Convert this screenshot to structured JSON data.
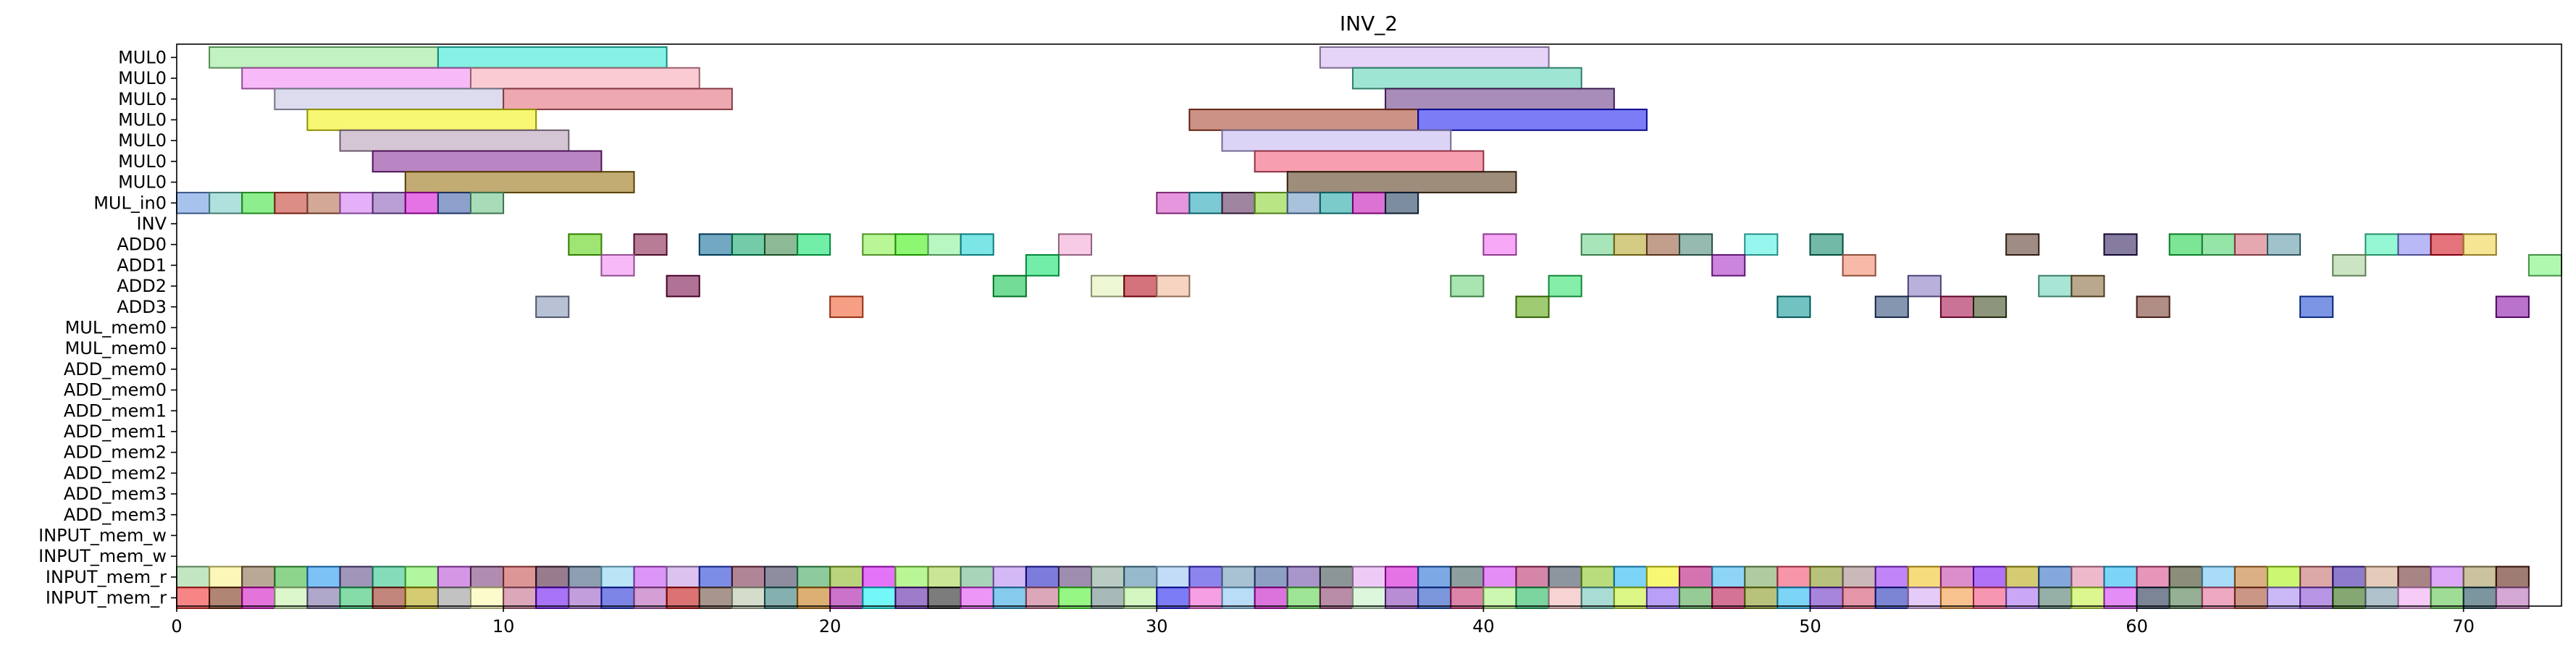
{
  "chart_data": {
    "type": "gantt",
    "title": "INV_2",
    "xlim": [
      0,
      73
    ],
    "xticks": [
      0,
      10,
      20,
      30,
      40,
      50,
      60,
      70
    ],
    "grid": false,
    "rows": [
      "MUL0",
      "MUL0",
      "MUL0",
      "MUL0",
      "MUL0",
      "MUL0",
      "MUL0",
      "MUL_in0",
      "INV",
      "ADD0",
      "ADD1",
      "ADD2",
      "ADD3",
      "MUL_mem0",
      "MUL_mem0",
      "ADD_mem0",
      "ADD_mem0",
      "ADD_mem1",
      "ADD_mem1",
      "ADD_mem2",
      "ADD_mem2",
      "ADD_mem3",
      "ADD_mem3",
      "INPUT_mem_w",
      "INPUT_mem_w",
      "INPUT_mem_r",
      "INPUT_mem_r"
    ],
    "tasks": [
      {
        "row": 0,
        "start": 1,
        "end": 8,
        "color": "#90e890"
      },
      {
        "row": 0,
        "start": 8,
        "end": 15,
        "color": "#20e8d0"
      },
      {
        "row": 0,
        "start": 35,
        "end": 42,
        "color": "#d0b0f0"
      },
      {
        "row": 1,
        "start": 2,
        "end": 9,
        "color": "#f080f0"
      },
      {
        "row": 1,
        "start": 9,
        "end": 16,
        "color": "#f8a0b0"
      },
      {
        "row": 1,
        "start": 36,
        "end": 43,
        "color": "#50d0b0"
      },
      {
        "row": 2,
        "start": 3,
        "end": 10,
        "color": "#c0c0e0"
      },
      {
        "row": 2,
        "start": 10,
        "end": 17,
        "color": "#e06070"
      },
      {
        "row": 2,
        "start": 37,
        "end": 44,
        "color": "#603080"
      },
      {
        "row": 3,
        "start": 4,
        "end": 11,
        "color": "#f0f000"
      },
      {
        "row": 3,
        "start": 31,
        "end": 38,
        "color": "#a03820"
      },
      {
        "row": 3,
        "start": 38,
        "end": 45,
        "color": "#1010f0"
      },
      {
        "row": 4,
        "start": 5,
        "end": 12,
        "color": "#b098b0"
      },
      {
        "row": 4,
        "start": 32,
        "end": 39,
        "color": "#c0b0f0"
      },
      {
        "row": 5,
        "start": 6,
        "end": 13,
        "color": "#802090"
      },
      {
        "row": 5,
        "start": 33,
        "end": 40,
        "color": "#f05070"
      },
      {
        "row": 6,
        "start": 7,
        "end": 14,
        "color": "#906800"
      },
      {
        "row": 6,
        "start": 34,
        "end": 41,
        "color": "#503010"
      },
      {
        "row": 7,
        "start": 0,
        "end": 1,
        "color": "#6090e0"
      },
      {
        "row": 7,
        "start": 1,
        "end": 2,
        "color": "#70c8c0"
      },
      {
        "row": 7,
        "start": 2,
        "end": 3,
        "color": "#30e030"
      },
      {
        "row": 7,
        "start": 3,
        "end": 4,
        "color": "#c03020"
      },
      {
        "row": 7,
        "start": 4,
        "end": 5,
        "color": "#b06040"
      },
      {
        "row": 7,
        "start": 5,
        "end": 6,
        "color": "#d070f0"
      },
      {
        "row": 7,
        "start": 6,
        "end": 7,
        "color": "#8050b0"
      },
      {
        "row": 7,
        "start": 7,
        "end": 8,
        "color": "#d000d0"
      },
      {
        "row": 7,
        "start": 8,
        "end": 9,
        "color": "#3050a0"
      },
      {
        "row": 7,
        "start": 9,
        "end": 10,
        "color": "#60c080"
      },
      {
        "row": 7,
        "start": 30,
        "end": 31,
        "color": "#d040c0"
      },
      {
        "row": 7,
        "start": 31,
        "end": 32,
        "color": "#10a0b0"
      },
      {
        "row": 7,
        "start": 32,
        "end": 33,
        "color": "#502050"
      },
      {
        "row": 7,
        "start": 33,
        "end": 34,
        "color": "#80d020"
      },
      {
        "row": 7,
        "start": 34,
        "end": 35,
        "color": "#6090c0"
      },
      {
        "row": 7,
        "start": 35,
        "end": 36,
        "color": "#10a0a0"
      },
      {
        "row": 7,
        "start": 36,
        "end": 37,
        "color": "#c000b0"
      },
      {
        "row": 7,
        "start": 37,
        "end": 38,
        "color": "#103050"
      },
      {
        "row": 9,
        "start": 12,
        "end": 13,
        "color": "#50d000"
      },
      {
        "row": 9,
        "start": 14,
        "end": 15,
        "color": "#801040"
      },
      {
        "row": 9,
        "start": 16,
        "end": 17,
        "color": "#006090"
      },
      {
        "row": 9,
        "start": 17,
        "end": 18,
        "color": "#00a060"
      },
      {
        "row": 9,
        "start": 18,
        "end": 19,
        "color": "#308040"
      },
      {
        "row": 9,
        "start": 19,
        "end": 20,
        "color": "#00e060"
      },
      {
        "row": 9,
        "start": 21,
        "end": 22,
        "color": "#80f040"
      },
      {
        "row": 9,
        "start": 22,
        "end": 23,
        "color": "#30f000"
      },
      {
        "row": 9,
        "start": 23,
        "end": 24,
        "color": "#80f090"
      },
      {
        "row": 9,
        "start": 24,
        "end": 25,
        "color": "#10d0d0"
      },
      {
        "row": 9,
        "start": 27,
        "end": 28,
        "color": "#f0a0d0"
      },
      {
        "row": 9,
        "start": 40,
        "end": 41,
        "color": "#f060f0"
      },
      {
        "row": 9,
        "start": 43,
        "end": 44,
        "color": "#60d080"
      },
      {
        "row": 9,
        "start": 44,
        "end": 45,
        "color": "#b0a020"
      },
      {
        "row": 9,
        "start": 45,
        "end": 46,
        "color": "#905030"
      },
      {
        "row": 9,
        "start": 46,
        "end": 47,
        "color": "#408070"
      },
      {
        "row": 9,
        "start": 48,
        "end": 49,
        "color": "#40f0e0"
      },
      {
        "row": 9,
        "start": 50,
        "end": 51,
        "color": "#008060"
      },
      {
        "row": 9,
        "start": 56,
        "end": 57,
        "color": "#503020"
      },
      {
        "row": 9,
        "start": 59,
        "end": 60,
        "color": "#201050"
      },
      {
        "row": 9,
        "start": 61,
        "end": 62,
        "color": "#10d040"
      },
      {
        "row": 9,
        "start": 62,
        "end": 63,
        "color": "#40d060"
      },
      {
        "row": 9,
        "start": 63,
        "end": 64,
        "color": "#d06070"
      },
      {
        "row": 9,
        "start": 64,
        "end": 65,
        "color": "#5090a0"
      },
      {
        "row": 9,
        "start": 67,
        "end": 68,
        "color": "#40f0b0"
      },
      {
        "row": 9,
        "start": 68,
        "end": 69,
        "color": "#8080f0"
      },
      {
        "row": 9,
        "start": 69,
        "end": 70,
        "color": "#d00010"
      },
      {
        "row": 9,
        "start": 70,
        "end": 71,
        "color": "#f0d040"
      },
      {
        "row": 10,
        "start": 13,
        "end": 14,
        "color": "#f080f0"
      },
      {
        "row": 10,
        "start": 26,
        "end": 27,
        "color": "#00e060"
      },
      {
        "row": 10,
        "start": 47,
        "end": 48,
        "color": "#a020c0"
      },
      {
        "row": 10,
        "start": 51,
        "end": 52,
        "color": "#f08060"
      },
      {
        "row": 10,
        "start": 66,
        "end": 67,
        "color": "#a0d090"
      },
      {
        "row": 10,
        "start": 72,
        "end": 73,
        "color": "#70f070"
      },
      {
        "row": 11,
        "start": 15,
        "end": 16,
        "color": "#700040"
      },
      {
        "row": 11,
        "start": 25,
        "end": 26,
        "color": "#00c040"
      },
      {
        "row": 11,
        "start": 28,
        "end": 29,
        "color": "#e0f0b0"
      },
      {
        "row": 11,
        "start": 29,
        "end": 30,
        "color": "#b00010"
      },
      {
        "row": 11,
        "start": 30,
        "end": 31,
        "color": "#f0b090"
      },
      {
        "row": 11,
        "start": 39,
        "end": 40,
        "color": "#60d070"
      },
      {
        "row": 11,
        "start": 42,
        "end": 43,
        "color": "#20e060"
      },
      {
        "row": 11,
        "start": 53,
        "end": 54,
        "color": "#8070c0"
      },
      {
        "row": 11,
        "start": 57,
        "end": 58,
        "color": "#60d0b0"
      },
      {
        "row": 11,
        "start": 58,
        "end": 59,
        "color": "#806030"
      },
      {
        "row": 12,
        "start": 11,
        "end": 12,
        "color": "#8090b0"
      },
      {
        "row": 12,
        "start": 20,
        "end": 21,
        "color": "#f05020"
      },
      {
        "row": 12,
        "start": 41,
        "end": 42,
        "color": "#50a000"
      },
      {
        "row": 12,
        "start": 49,
        "end": 50,
        "color": "#009090"
      },
      {
        "row": 12,
        "start": 52,
        "end": 53,
        "color": "#204070"
      },
      {
        "row": 12,
        "start": 54,
        "end": 55,
        "color": "#a00040"
      },
      {
        "row": 12,
        "start": 55,
        "end": 56,
        "color": "#304010"
      },
      {
        "row": 12,
        "start": 60,
        "end": 61,
        "color": "#703020"
      },
      {
        "row": 12,
        "start": 65,
        "end": 66,
        "color": "#1040d0"
      },
      {
        "row": 12,
        "start": 71,
        "end": 72,
        "color": "#8000a0"
      }
    ],
    "mem_colors_25": [
      "#90d090",
      "#f8f080",
      "#806040",
      "#30b030",
      "#1090f0",
      "#504080",
      "#20c080",
      "#70f050",
      "#b040d0",
      "#703070",
      "#c04040",
      "#401030",
      "#305070",
      "#80d0f0",
      "#c040f0",
      "#c090e0",
      "#1030d0",
      "#702040",
      "#303050",
      "#30a050",
      "#80b010",
      "#d000f0",
      "#80f040",
      "#a0d040",
      "#60b080",
      "#b080f0",
      "#1010c0",
      "#503070",
      "#80a090",
      "#4080a0",
      "#90c0f0",
      "#3020e0",
      "#6090b0",
      "#305090",
      "#6040a0",
      "#304040",
      "#e0a0f0",
      "#d000d0",
      "#1060d0",
      "#305050",
      "#d030f0",
      "#b02060",
      "#304050",
      "#80c010",
      "#10b0f0",
      "#f0f000",
      "#b00070",
      "#30b0f0",
      "#70a050",
      "#f04060",
      "#809010",
      "#a08080",
      "#9020f0",
      "#f0c010",
      "#c030a0",
      "#7000f0",
      "#b0a000",
      "#2060c0",
      "#e080a0",
      "#10b0f0",
      "#d04080",
      "#303010",
      "#60c0f0",
      "#c07020",
      "#a0f000",
      "#c06060",
      "#3010a0",
      "#d0a080",
      "#602020",
      "#c060f0",
      "#a09050",
      "#501000"
    ],
    "mem_colors_26": [
      "#f02020",
      "#702000",
      "#d000c0",
      "#c0f0a0",
      "#7060a0",
      "#20c060",
      "#902010",
      "#b0a000",
      "#909090",
      "#f8f8a0",
      "#c06080",
      "#6000f0",
      "#9050c0",
      "#1020d0",
      "#b050b0",
      "#c00000",
      "#604030",
      "#b0c0a0",
      "#207070",
      "#c07000",
      "#a000a0",
      "#00f0f0",
      "#5010a0",
      "#101010",
      "#e040f0",
      "#20a0e0",
      "#c06080",
      "#40f020",
      "#608080",
      "#b0f090",
      "#1010f0",
      "#f050d0",
      "#80c0f0",
      "#c000c0",
      "#50d040",
      "#803060",
      "#c0f0c0",
      "#8030b0",
      "#1040c0",
      "#c02060",
      "#a0f070",
      "#10b050",
      "#f0b0b0",
      "#60c0b0",
      "#c0f020",
      "#8050f0",
      "#40a040",
      "#b00040",
      "#809010",
      "#10b0f0",
      "#6020c0",
      "#d04060",
      "#1020b0",
      "#d0a0f0",
      "#f09030",
      "#f04070",
      "#a060f0",
      "#407060",
      "#c0f030",
      "#d030f0",
      "#102040",
      "#407040",
      "#e06090",
      "#a04020",
      "#a080f0",
      "#8040d0",
      "#206000",
      "#7090a0",
      "#f0a0f0",
      "#50c040",
      "#104050",
      "#b060b0"
    ]
  }
}
